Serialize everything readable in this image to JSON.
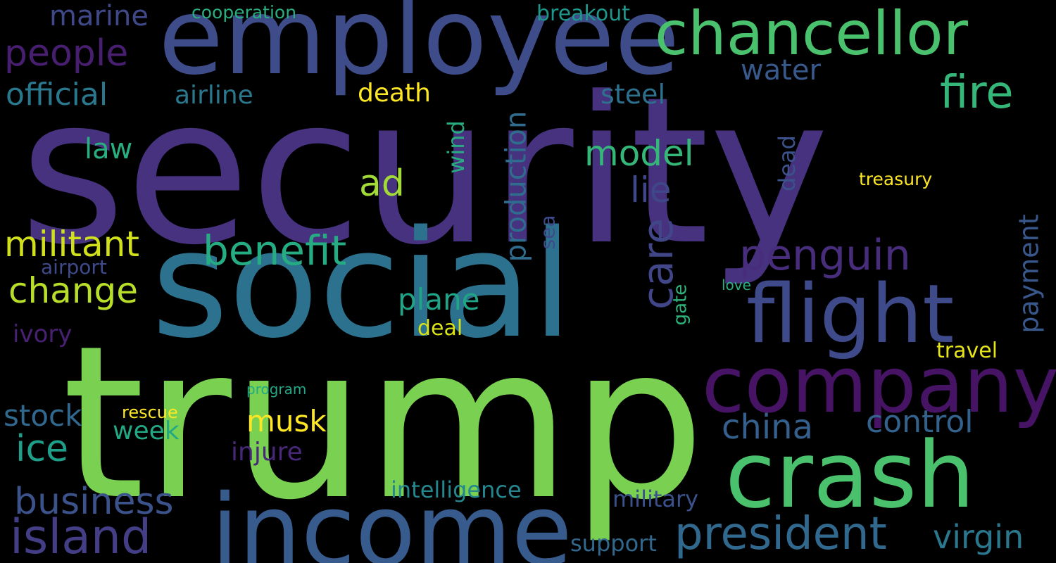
{
  "words": {
    "security": {
      "text": "security",
      "color": "#46327e"
    },
    "trump": {
      "text": "trump",
      "color": "#7ad151"
    },
    "social": {
      "text": "social",
      "color": "#2c728e"
    },
    "employee": {
      "text": "employee",
      "color": "#3e4c8a"
    },
    "income": {
      "text": "income",
      "color": "#375b8d"
    },
    "company": {
      "text": "company",
      "color": "#471365"
    },
    "crash": {
      "text": "crash",
      "color": "#4ac16d"
    },
    "flight": {
      "text": "flight",
      "color": "#3e4a89"
    },
    "chancellor": {
      "text": "chancellor",
      "color": "#4ac16d"
    },
    "president": {
      "text": "president",
      "color": "#31688e"
    },
    "island": {
      "text": "island",
      "color": "#433e85"
    },
    "penguin": {
      "text": "penguin",
      "color": "#472d7b"
    },
    "benefit": {
      "text": "benefit",
      "color": "#25ac82"
    },
    "business": {
      "text": "business",
      "color": "#3b528b"
    },
    "change": {
      "text": "change",
      "color": "#b8de29"
    },
    "militant": {
      "text": "militant",
      "color": "#d0e11c"
    },
    "people": {
      "text": "people",
      "color": "#481f70"
    },
    "official": {
      "text": "official",
      "color": "#2a788e"
    },
    "fire": {
      "text": "fire",
      "color": "#35b779"
    },
    "model": {
      "text": "model",
      "color": "#35b779"
    },
    "ad": {
      "text": "ad",
      "color": "#a2da37"
    },
    "ice": {
      "text": "ice",
      "color": "#1f9e89"
    },
    "china": {
      "text": "china",
      "color": "#355f8d"
    },
    "control": {
      "text": "control",
      "color": "#33628d"
    },
    "virgin": {
      "text": "virgin",
      "color": "#2a778e"
    },
    "musk": {
      "text": "musk",
      "color": "#fde725"
    },
    "stock": {
      "text": "stock",
      "color": "#30688e"
    },
    "plane": {
      "text": "plane",
      "color": "#20a386"
    },
    "care": {
      "text": "care",
      "color": "#404688"
    },
    "production": {
      "text": "production",
      "color": "#2f6c8e"
    },
    "lie": {
      "text": "lie",
      "color": "#3f4788"
    },
    "law": {
      "text": "law",
      "color": "#29af7f"
    },
    "payment": {
      "text": "payment",
      "color": "#38588c"
    },
    "marine": {
      "text": "marine",
      "color": "#3f4889"
    },
    "water": {
      "text": "water",
      "color": "#38598c"
    },
    "steel": {
      "text": "steel",
      "color": "#2d718e"
    },
    "death": {
      "text": "death",
      "color": "#fde725"
    },
    "airline": {
      "text": "airline",
      "color": "#2a788e"
    },
    "week": {
      "text": "week",
      "color": "#22a884"
    },
    "injure": {
      "text": "injure",
      "color": "#482878"
    },
    "intelligence": {
      "text": "intelligence",
      "color": "#24868e"
    },
    "military": {
      "text": "military",
      "color": "#3b518b"
    },
    "support": {
      "text": "support",
      "color": "#31688e"
    },
    "ivory": {
      "text": "ivory",
      "color": "#482173"
    },
    "breakout": {
      "text": "breakout",
      "color": "#1f968b"
    },
    "cooperation": {
      "text": "cooperation",
      "color": "#29af7f"
    },
    "wind": {
      "text": "wind",
      "color": "#27ad81"
    },
    "dead": {
      "text": "dead",
      "color": "#3b528b"
    },
    "sea": {
      "text": "sea",
      "color": "#3e4a89"
    },
    "gate": {
      "text": "gate",
      "color": "#2eb37c"
    },
    "airport": {
      "text": "airport",
      "color": "#3e4a89"
    },
    "deal": {
      "text": "deal",
      "color": "#d8e219"
    },
    "travel": {
      "text": "travel",
      "color": "#e5e419"
    },
    "treasury": {
      "text": "treasury",
      "color": "#fde725"
    },
    "love": {
      "text": "love",
      "color": "#2ab07f"
    },
    "rescue": {
      "text": "rescue",
      "color": "#fde725"
    },
    "program": {
      "text": "program",
      "color": "#22a884"
    }
  }
}
